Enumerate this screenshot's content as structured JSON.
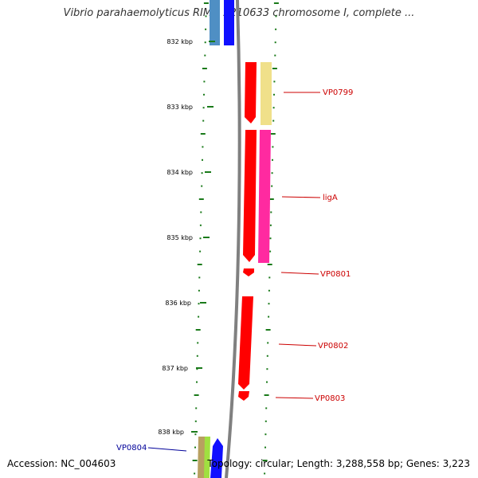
{
  "header": {
    "title": "Vibrio parahaemolyticus RIMD 2210633 chromosome I, complete ..."
  },
  "footer": {
    "accession": "Accession: NC_004603",
    "summary": "Topology: circular; Length: 3,288,558 bp; Genes: 3,223"
  },
  "map": {
    "ticks": [
      {
        "label": "832 kbp"
      },
      {
        "label": "833 kbp"
      },
      {
        "label": "834 kbp"
      },
      {
        "label": "835 kbp"
      },
      {
        "label": "836 kbp"
      },
      {
        "label": "837 kbp"
      },
      {
        "label": "838 kbp"
      }
    ],
    "gene_labels": [
      {
        "text": "VP0799",
        "color": "#cc0000"
      },
      {
        "text": "ligA",
        "color": "#cc0000"
      },
      {
        "text": "VP0801",
        "color": "#cc0000"
      },
      {
        "text": "VP0802",
        "color": "#cc0000"
      },
      {
        "text": "VP0803",
        "color": "#cc0000"
      },
      {
        "text": "VP0804",
        "color": "#000099"
      }
    ],
    "colors": {
      "backbone": "#808080",
      "tick": "#1a7a1a",
      "forward_gene": "#ff0000",
      "reverse_gene": "#0000ff"
    }
  }
}
